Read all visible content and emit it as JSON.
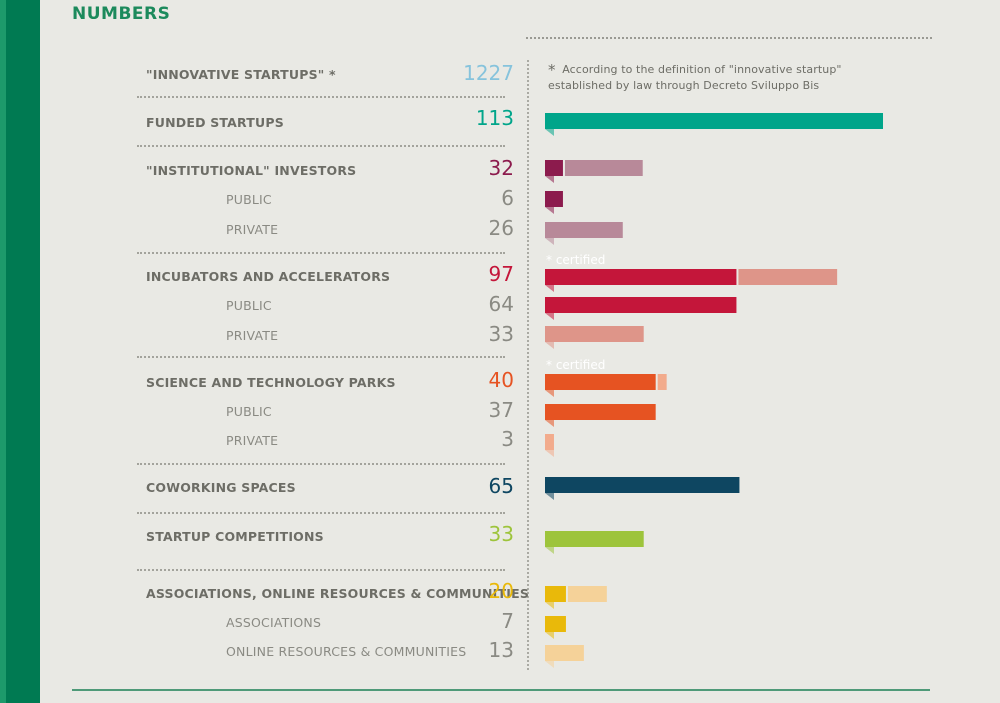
{
  "header": {
    "title": "NUMBERS"
  },
  "note": {
    "star": "*",
    "text_line1": "According to the definition of \"innovative startup\"",
    "text_line2": "established by law through Decreto Sviluppo Bis"
  },
  "certified_label": "*  certified",
  "colors": {
    "startups": "#86c3dc",
    "funded": "#00a58a",
    "investors_main": "#8c1b4d",
    "investors_light": "#b88999",
    "incubators_main": "#c4163a",
    "incubators_light": "#de9589",
    "parks_main": "#e65322",
    "parks_light": "#f2ab8c",
    "coworking": "#0e4661",
    "competitions": "#9dc43b",
    "assoc_main": "#e9b90a",
    "assoc_light": "#f5d299"
  },
  "rows": [
    {
      "label": "\"INNOVATIVE STARTUPS\" *",
      "value": "1227"
    },
    {
      "label": "FUNDED STARTUPS",
      "value": "113"
    },
    {
      "label": "\"INSTITUTIONAL\" INVESTORS",
      "value": "32",
      "sub": [
        {
          "label": "PUBLIC",
          "value": "6"
        },
        {
          "label": "PRIVATE",
          "value": "26"
        }
      ]
    },
    {
      "label": "INCUBATORS AND ACCELERATORS",
      "value": "97",
      "sub": [
        {
          "label": "PUBLIC",
          "value": "64"
        },
        {
          "label": "PRIVATE",
          "value": "33"
        }
      ]
    },
    {
      "label": "SCIENCE AND TECHNOLOGY PARKS",
      "value": "40",
      "sub": [
        {
          "label": "PUBLIC",
          "value": "37"
        },
        {
          "label": "PRIVATE",
          "value": "3"
        }
      ]
    },
    {
      "label": "COWORKING SPACES",
      "value": "65"
    },
    {
      "label": "STARTUP COMPETITIONS",
      "value": "33"
    },
    {
      "label": "ASSOCIATIONS, ONLINE RESOURCES & COMMUNITIES",
      "value": "20",
      "sub": [
        {
          "label": "ASSOCIATIONS",
          "value": "7"
        },
        {
          "label": "ONLINE RESOURCES & COMMUNITIES",
          "value": "13"
        }
      ]
    }
  ],
  "chart_data": {
    "type": "bar",
    "title": "NUMBERS",
    "orientation": "horizontal",
    "xlim": [
      0,
      113
    ],
    "series": [
      {
        "name": "FUNDED STARTUPS",
        "segments": [
          113
        ],
        "colors": [
          "funded"
        ]
      },
      {
        "name": "\"INSTITUTIONAL\" INVESTORS",
        "segments": [
          6,
          26
        ],
        "colors": [
          "investors_main",
          "investors_light"
        ]
      },
      {
        "name": "PUBLIC (investors)",
        "segments": [
          6
        ],
        "colors": [
          "investors_main"
        ]
      },
      {
        "name": "PRIVATE (investors)",
        "segments": [
          26
        ],
        "colors": [
          "investors_light"
        ]
      },
      {
        "name": "INCUBATORS AND ACCELERATORS",
        "segments": [
          64,
          33
        ],
        "colors": [
          "incubators_main",
          "incubators_light"
        ]
      },
      {
        "name": "PUBLIC (incubators)",
        "segments": [
          64
        ],
        "colors": [
          "incubators_main"
        ]
      },
      {
        "name": "PRIVATE (incubators)",
        "segments": [
          33
        ],
        "colors": [
          "incubators_light"
        ]
      },
      {
        "name": "SCIENCE AND TECHNOLOGY PARKS",
        "segments": [
          37,
          3
        ],
        "colors": [
          "parks_main",
          "parks_light"
        ]
      },
      {
        "name": "PUBLIC (parks)",
        "segments": [
          37
        ],
        "colors": [
          "parks_main"
        ]
      },
      {
        "name": "PRIVATE (parks)",
        "segments": [
          3
        ],
        "colors": [
          "parks_light"
        ]
      },
      {
        "name": "COWORKING SPACES",
        "segments": [
          65
        ],
        "colors": [
          "coworking"
        ]
      },
      {
        "name": "STARTUP COMPETITIONS",
        "segments": [
          33
        ],
        "colors": [
          "competitions"
        ]
      },
      {
        "name": "ASSOCIATIONS, ONLINE RESOURCES & COMMUNITIES",
        "segments": [
          7,
          13
        ],
        "colors": [
          "assoc_main",
          "assoc_light"
        ]
      },
      {
        "name": "ASSOCIATIONS",
        "segments": [
          7
        ],
        "colors": [
          "assoc_main"
        ]
      },
      {
        "name": "ONLINE RESOURCES & COMMUNITIES",
        "segments": [
          13
        ],
        "colors": [
          "assoc_light"
        ]
      }
    ]
  }
}
